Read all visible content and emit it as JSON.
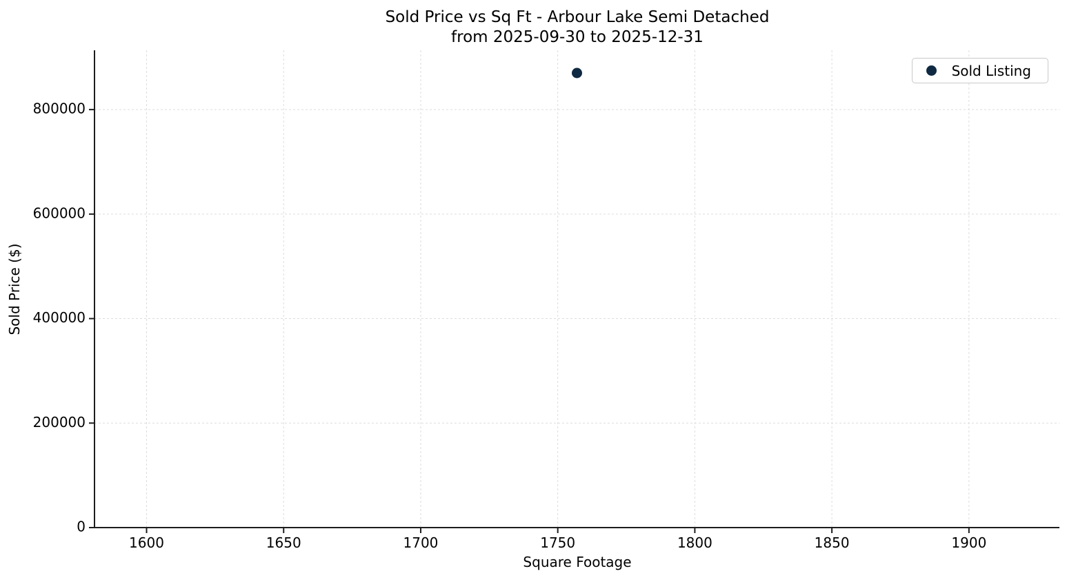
{
  "figure": {
    "title_line1": "Sold Price vs Sq Ft - Arbour Lake Semi Detached",
    "title_line2": "from 2025-09-30 to 2025-12-31"
  },
  "chart_data": {
    "type": "scatter",
    "title": "Sold Price vs Sq Ft - Arbour Lake Semi Detached\nfrom 2025-09-30 to 2025-12-31",
    "xlabel": "Square Footage",
    "ylabel": "Sold Price ($)",
    "series": [
      {
        "name": "Sold Listing",
        "x": [
          1757
        ],
        "y": [
          870000
        ],
        "color": "#0f2942",
        "marker": "circle"
      }
    ],
    "xlim": [
      1581,
      1933
    ],
    "ylim": [
      0,
      913500
    ],
    "x_ticks": [
      1600,
      1650,
      1700,
      1750,
      1800,
      1850,
      1900
    ],
    "y_ticks": [
      0,
      200000,
      400000,
      600000,
      800000
    ],
    "grid": true,
    "grid_style": "dashed",
    "legend_position": "upper right"
  },
  "colors": {
    "marker": "#0f2942",
    "grid": "#dcdcdc",
    "spine": "#1c1c1c",
    "tick_text": "#000000",
    "legend_border": "#c9c9c9",
    "background": "#ffffff"
  }
}
